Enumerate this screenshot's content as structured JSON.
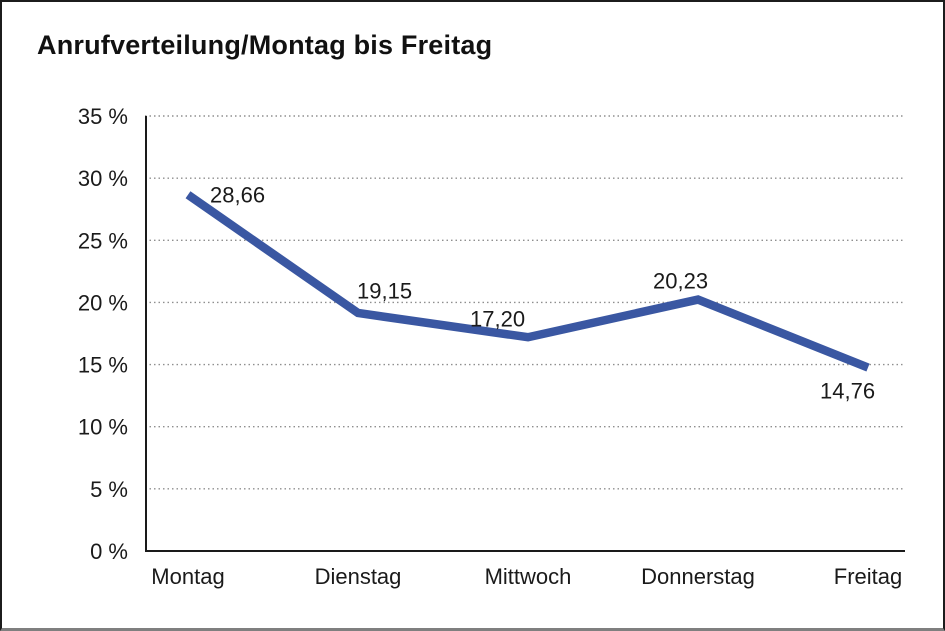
{
  "window": {
    "background": "#ffffff",
    "frame_border_color": "#1c1c1c",
    "frame_bottom_border_color": "#7f7f7f"
  },
  "header": {
    "title": "Anrufverteilung/Montag bis Freitag"
  },
  "chart_data": {
    "type": "line",
    "title": "Anrufverteilung/Montag bis Freitag",
    "categories": [
      "Montag",
      "Dienstag",
      "Mittwoch",
      "Donnerstag",
      "Freitag"
    ],
    "values": [
      28.66,
      19.15,
      17.2,
      20.23,
      14.76
    ],
    "data_labels": [
      "28,66",
      "19,15",
      "17,20",
      "20,23",
      "14,76"
    ],
    "xlabel": "",
    "ylabel": "",
    "ylim": [
      0,
      35
    ],
    "ytick_step": 5,
    "yticks": [
      {
        "value": 35,
        "label": "35 %"
      },
      {
        "value": 30,
        "label": "30 %"
      },
      {
        "value": 25,
        "label": "25 %"
      },
      {
        "value": 20,
        "label": "20 %"
      },
      {
        "value": 15,
        "label": "15 %"
      },
      {
        "value": 10,
        "label": "10 %"
      },
      {
        "value": 5,
        "label": "5 %"
      },
      {
        "value": 0,
        "label": "0 %"
      }
    ],
    "grid": "horizontal dotted",
    "legend": "none",
    "line_color": "#3a57a2",
    "axis_color": "#1a1a1a",
    "gridline_color": "#8f8f8f",
    "text_color": "#1a1a1a"
  }
}
